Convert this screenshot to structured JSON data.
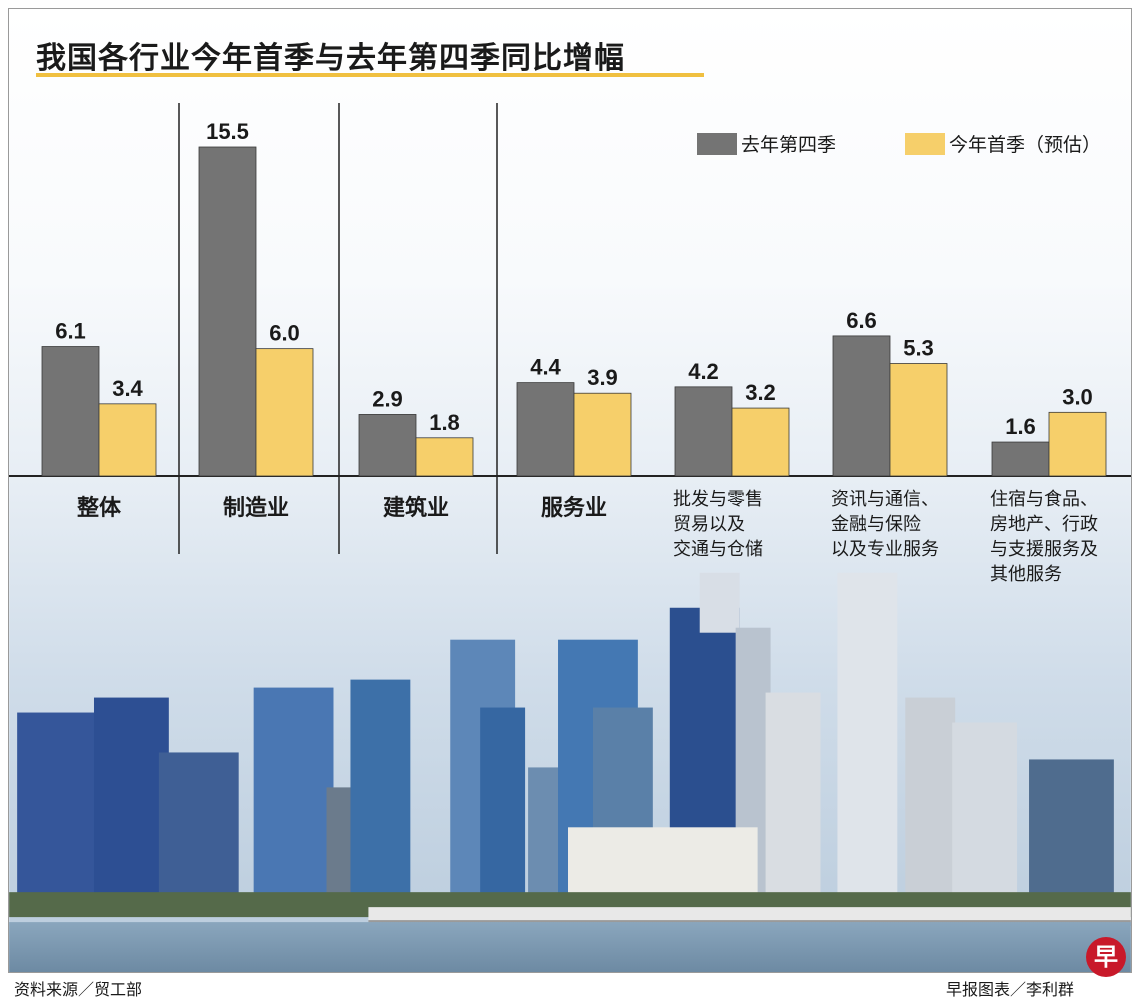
{
  "title": "我国各行业今年首季与去年第四季同比增幅",
  "footer": {
    "source": "资料来源／贸工部",
    "credit": "早报图表／李利群",
    "logo_char": "早"
  },
  "colors": {
    "q4": "#747474",
    "q1": "#f6cf6a",
    "divider": "#222222",
    "bar_outline": "#3a3a3a"
  },
  "chart_data": {
    "type": "bar",
    "title": "我国各行业今年首季与去年第四季同比增幅",
    "xlabel": "",
    "ylabel": "",
    "grid": false,
    "legend_position": "top-right",
    "categories": [
      "整体",
      "制造业",
      "建筑业",
      "服务业",
      "批发与零售 贸易以及 交通与仓储",
      "资讯与通信、 金融与保险 以及专业服务",
      "住宿与食品、 房地产、行政 与支援服务及 其他服务"
    ],
    "category_lines": [
      [
        "整体"
      ],
      [
        "制造业"
      ],
      [
        "建筑业"
      ],
      [
        "服务业"
      ],
      [
        "批发与零售",
        "贸易以及",
        "交通与仓储"
      ],
      [
        "资讯与通信、",
        "金融与保险",
        "以及专业服务"
      ],
      [
        "住宿与食品、",
        "房地产、行政",
        "与支援服务及",
        "其他服务"
      ]
    ],
    "series": [
      {
        "name": "去年第四季",
        "values": [
          6.1,
          15.5,
          2.9,
          4.4,
          4.2,
          6.6,
          1.6
        ]
      },
      {
        "name": "今年首季（预估）",
        "values": [
          3.4,
          6.0,
          1.8,
          3.9,
          3.2,
          5.3,
          3.0
        ]
      }
    ],
    "value_labels": [
      [
        "6.1",
        "15.5",
        "2.9",
        "4.4",
        "4.2",
        "6.6",
        "1.6"
      ],
      [
        "3.4",
        "6.0",
        "1.8",
        "3.9",
        "3.2",
        "5.3",
        "3.0"
      ]
    ],
    "ylim": [
      0,
      15.5
    ]
  }
}
